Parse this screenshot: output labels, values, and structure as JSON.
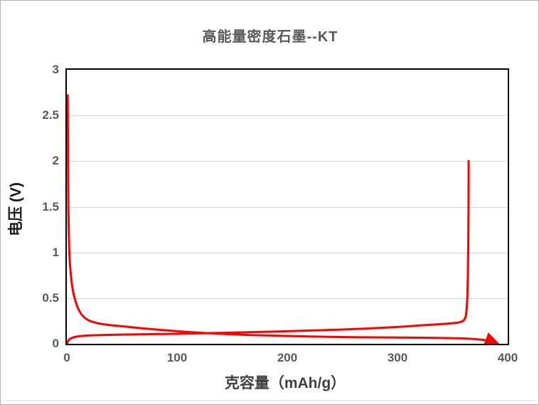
{
  "window": {
    "background": "#ffffff",
    "frame_border_color": "#b2b2b2",
    "bottom_rule_color": "#e3e3e3"
  },
  "chart_data": {
    "type": "line",
    "title": "高能量密度石墨--KT",
    "xlabel": "克容量（mAh/g）",
    "ylabel": "电压 (V)",
    "xlim": [
      0,
      400
    ],
    "ylim": [
      0,
      3
    ],
    "x_ticks": [
      0,
      100,
      200,
      300,
      400
    ],
    "y_ticks": [
      0,
      0.5,
      1,
      1.5,
      2,
      2.5,
      3
    ],
    "grid": {
      "horizontal": true,
      "vertical": false,
      "color": "#d9d9d9"
    },
    "legend_position": "none",
    "plot_border_color": "#000000",
    "text_colors": {
      "title": "#595959",
      "ticks": "#595959",
      "xlabel": "#404040",
      "ylabel": "#1a1a1a"
    },
    "series": [
      {
        "name": "discharge",
        "color": "#ff0000",
        "width": 3,
        "end_arrow": true,
        "points": [
          [
            0.8,
            2.72
          ],
          [
            0.9,
            2.45
          ],
          [
            1.0,
            2.2
          ],
          [
            1.1,
            1.95
          ],
          [
            1.3,
            1.65
          ],
          [
            1.5,
            1.42
          ],
          [
            1.8,
            1.2
          ],
          [
            2.2,
            1.02
          ],
          [
            2.8,
            0.88
          ],
          [
            3.6,
            0.76
          ],
          [
            4.6,
            0.65
          ],
          [
            6,
            0.55
          ],
          [
            8,
            0.46
          ],
          [
            10,
            0.39
          ],
          [
            13,
            0.325
          ],
          [
            16,
            0.285
          ],
          [
            20,
            0.255
          ],
          [
            24,
            0.238
          ],
          [
            28,
            0.225
          ],
          [
            34,
            0.212
          ],
          [
            42,
            0.2
          ],
          [
            54,
            0.187
          ],
          [
            68,
            0.17
          ],
          [
            85,
            0.152
          ],
          [
            105,
            0.133
          ],
          [
            125,
            0.118
          ],
          [
            145,
            0.106
          ],
          [
            165,
            0.097
          ],
          [
            185,
            0.09
          ],
          [
            205,
            0.084
          ],
          [
            225,
            0.079
          ],
          [
            248,
            0.074
          ],
          [
            272,
            0.071
          ],
          [
            298,
            0.068
          ],
          [
            322,
            0.066
          ],
          [
            342,
            0.063
          ],
          [
            358,
            0.059
          ],
          [
            369,
            0.053
          ],
          [
            377,
            0.044
          ],
          [
            382,
            0.034
          ],
          [
            385.5,
            0.023
          ],
          [
            387.5,
            0.013
          ],
          [
            389,
            0.006
          ]
        ]
      },
      {
        "name": "charge",
        "color": "#ff0000",
        "width": 3,
        "end_arrow": false,
        "points": [
          [
            0.3,
            0.004
          ],
          [
            0.8,
            0.02
          ],
          [
            1.6,
            0.038
          ],
          [
            2.8,
            0.052
          ],
          [
            4.5,
            0.064
          ],
          [
            6.5,
            0.073
          ],
          [
            9,
            0.079
          ],
          [
            13,
            0.085
          ],
          [
            19,
            0.09
          ],
          [
            28,
            0.094
          ],
          [
            42,
            0.098
          ],
          [
            60,
            0.102
          ],
          [
            82,
            0.106
          ],
          [
            105,
            0.111
          ],
          [
            128,
            0.116
          ],
          [
            152,
            0.122
          ],
          [
            176,
            0.129
          ],
          [
            200,
            0.137
          ],
          [
            224,
            0.146
          ],
          [
            248,
            0.155
          ],
          [
            270,
            0.165
          ],
          [
            290,
            0.177
          ],
          [
            307,
            0.189
          ],
          [
            320,
            0.2
          ],
          [
            331,
            0.209
          ],
          [
            341,
            0.217
          ],
          [
            349,
            0.224
          ],
          [
            355,
            0.232
          ],
          [
            358.5,
            0.243
          ],
          [
            360.5,
            0.262
          ],
          [
            362,
            0.3
          ],
          [
            362.8,
            0.38
          ],
          [
            363.4,
            0.52
          ],
          [
            363.9,
            0.75
          ],
          [
            364.2,
            1.05
          ],
          [
            364.4,
            1.4
          ],
          [
            364.5,
            1.72
          ],
          [
            364.5,
            2.0
          ]
        ]
      }
    ]
  }
}
